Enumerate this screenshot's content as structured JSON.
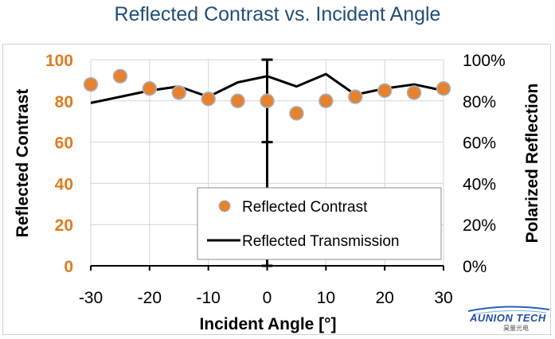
{
  "title": "Reflected Contrast vs. Incident Angle",
  "logo": {
    "text": "AUNION TECH",
    "subtext": "昊量光电"
  },
  "chart_data": {
    "type": "scatter",
    "title": "Reflected Contrast vs. Incident Angle",
    "xlabel": "Incident Angle [°]",
    "ylabel": "Reflected Contrast",
    "y2label": "Polarized Reflection",
    "xlim": [
      -30,
      30
    ],
    "ylim": [
      0,
      100
    ],
    "y2lim": [
      0,
      100
    ],
    "x_ticks": [
      -30,
      -20,
      -10,
      0,
      10,
      20,
      30
    ],
    "y_ticks": [
      0,
      20,
      40,
      60,
      80,
      100
    ],
    "y2_ticks": [
      "0%",
      "20%",
      "40%",
      "60%",
      "80%",
      "100%"
    ],
    "grid": true,
    "legend": "bottom-right",
    "series": [
      {
        "name": "Reflected Contrast",
        "kind": "scatter",
        "color": "#e8822a",
        "x": [
          -30,
          -25,
          -20,
          -15,
          -10,
          -5,
          0,
          5,
          10,
          15,
          20,
          25,
          30
        ],
        "y": [
          88,
          92,
          86,
          84,
          81,
          80,
          80,
          74,
          80,
          82,
          85,
          84,
          86
        ]
      },
      {
        "name": "Reflected Transmission",
        "kind": "line",
        "axis": "right",
        "color": "#000000",
        "x": [
          -30,
          -20,
          -15,
          -10,
          -5,
          0,
          5,
          10,
          15,
          20,
          25,
          30
        ],
        "y": [
          79,
          85,
          87,
          82,
          89,
          92,
          87,
          93,
          83,
          86,
          88,
          85
        ]
      }
    ],
    "error_bar": {
      "x": 0,
      "y": 80,
      "low": 0,
      "high": 100
    }
  }
}
